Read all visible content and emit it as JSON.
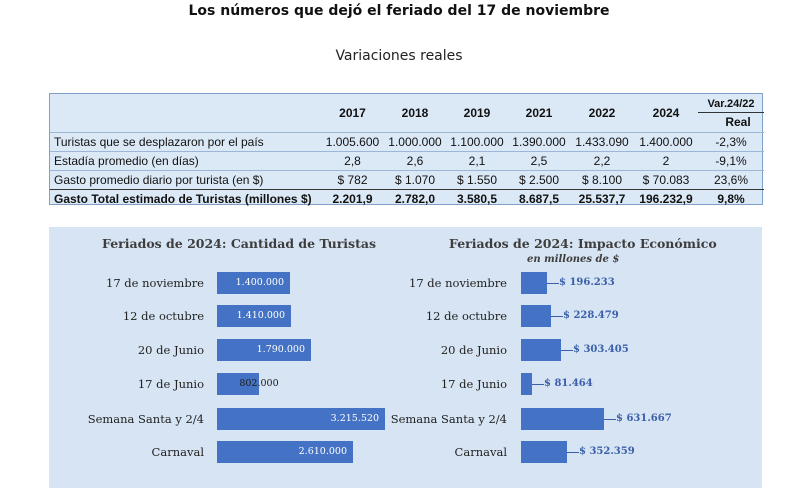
{
  "title": "Los números que dejó el feriado del 17 de noviembre",
  "subtitle": "Variaciones reales",
  "table": {
    "columns": [
      "2017",
      "2018",
      "2019",
      "2021",
      "2022",
      "2024"
    ],
    "var_header_top": "Var.24/22",
    "var_header_bottom": "Real",
    "rows": [
      {
        "label": "Turistas que se desplazaron por el país",
        "values": [
          "1.005.600",
          "1.000.000",
          "1.100.000",
          "1.390.000",
          "1.433.090",
          "1.400.000"
        ],
        "var": "-2,3%"
      },
      {
        "label": "Estadía promedio (en días)",
        "values": [
          "2,8",
          "2,6",
          "2,1",
          "2,5",
          "2,2",
          "2"
        ],
        "var": "-9,1%"
      },
      {
        "label": "Gasto promedio diario por turista (en $)",
        "values": [
          "$ 782",
          "$ 1.070",
          "$ 1.550",
          "$ 2.500",
          "$ 8.100",
          "$ 70.083"
        ],
        "var": "23,6%"
      },
      {
        "label": "Gasto Total estimado de Turistas (millones $)",
        "values": [
          "2.201,9",
          "2.782,0",
          "3.580,5",
          "8.687,5",
          "25.537,7",
          "196.232,9"
        ],
        "var": "9,8%"
      }
    ]
  },
  "colors": {
    "bar": "#4472c4",
    "panel_bg": "#d6e4f3",
    "table_bg": "#dbe8f6",
    "label_blue": "#3b5fa8"
  },
  "chart_data": [
    {
      "type": "bar",
      "orientation": "horizontal",
      "title": "Feriados de 2024: Cantidad de Turistas",
      "categories": [
        "17 de noviembre",
        "12 de octubre",
        "20 de Junio",
        "17 de Junio",
        "Semana Santa y 2/4",
        "Carnaval"
      ],
      "values": [
        1400000,
        1410000,
        1790000,
        802000,
        3215520,
        2610000
      ],
      "value_labels": [
        "1.400.000",
        "1.410.000",
        "1.790.000",
        "802.000",
        "3.215.520",
        "2.610.000"
      ],
      "xlim": [
        0,
        3215520
      ]
    },
    {
      "type": "bar",
      "orientation": "horizontal",
      "title": "Feriados de 2024: Impacto Económico",
      "subtitle": "en millones de $",
      "categories": [
        "17 de noviembre",
        "12 de octubre",
        "20 de Junio",
        "17 de Junio",
        "Semana Santa y 2/4",
        "Carnaval"
      ],
      "values": [
        196233,
        228479,
        303405,
        81464,
        631667,
        352359
      ],
      "value_labels": [
        "$ 196.233",
        "$ 228.479",
        "$ 303.405",
        "$ 81.464",
        "$ 631.667",
        "$ 352.359"
      ],
      "xlim": [
        0,
        631667
      ]
    }
  ]
}
